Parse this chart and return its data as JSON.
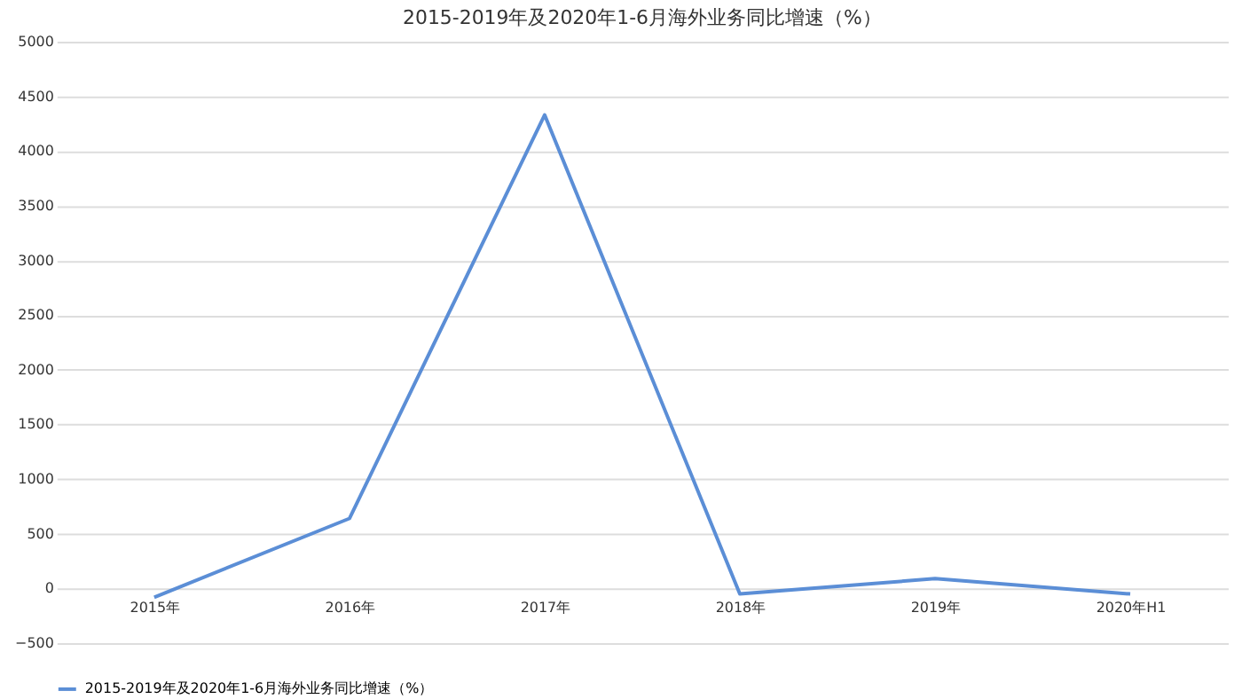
{
  "chart_data": {
    "type": "line",
    "title": "2015-2019年及2020年1-6月海外业务同比增速（%）",
    "categories": [
      "2015年",
      "2016年",
      "2017年",
      "2018年",
      "2019年",
      "2020年H1"
    ],
    "series": [
      {
        "name": "2015-2019年及2020年1-6月海外业务同比增速（%）",
        "color": "#5b8ed6",
        "values": [
          -80,
          640,
          4330,
          -50,
          90,
          -50
        ]
      }
    ],
    "ylim": [
      -500,
      5000
    ],
    "yticks": [
      -500,
      0,
      500,
      1000,
      1500,
      2000,
      2500,
      3000,
      3500,
      4000,
      4500,
      5000
    ],
    "grid": "y",
    "legend": "bottom",
    "marker": "none",
    "line_style": "solid"
  }
}
